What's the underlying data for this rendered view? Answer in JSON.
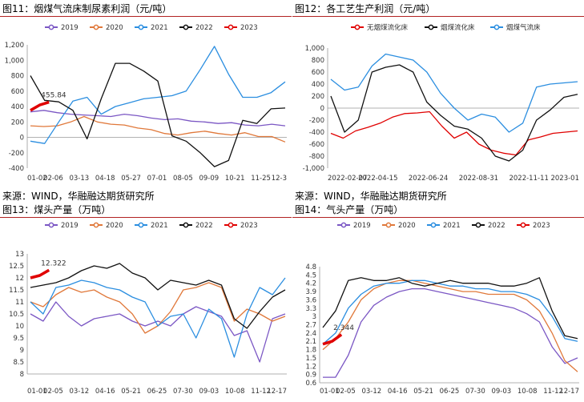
{
  "chart_data": [
    {
      "id": "c11",
      "type": "line",
      "title": "图11：烟煤气流床制尿素利润（元/吨）",
      "source": "来源：WIND，华融融达期货研究所",
      "x_ticks": [
        "01-02",
        "02-06",
        "03-13",
        "04-18",
        "05-27",
        "07-01",
        "08-05",
        "09-09",
        "10-21",
        "11-25",
        "12-3"
      ],
      "ylim": [
        -400,
        1200
      ],
      "y_ticks": [
        "-400",
        "-200",
        "0",
        "200",
        "400",
        "600",
        "800",
        "1,000",
        "1,200"
      ],
      "annotation": "455.84",
      "series": [
        {
          "name": "2019",
          "color": "#7b57c4",
          "values": [
            330,
            350,
            320,
            300,
            290,
            280,
            270,
            300,
            280,
            250,
            230,
            240,
            210,
            200,
            180,
            190,
            160,
            150,
            170,
            150
          ]
        },
        {
          "name": "2020",
          "color": "#e0783a",
          "values": [
            150,
            140,
            150,
            200,
            270,
            200,
            170,
            160,
            120,
            100,
            50,
            30,
            60,
            80,
            50,
            30,
            60,
            10,
            10,
            -60
          ]
        },
        {
          "name": "2021",
          "color": "#2b8ee0",
          "values": [
            -50,
            -80,
            200,
            470,
            520,
            300,
            400,
            450,
            500,
            520,
            540,
            600,
            880,
            1180,
            820,
            520,
            520,
            580,
            720
          ]
        },
        {
          "name": "2022",
          "color": "#111111",
          "values": [
            800,
            480,
            460,
            350,
            -20,
            500,
            960,
            960,
            860,
            730,
            20,
            -50,
            -200,
            -380,
            -300,
            220,
            180,
            370,
            380
          ]
        },
        {
          "name": "2023",
          "color": "#e00000",
          "values": [
            350,
            420,
            455.84
          ]
        }
      ]
    },
    {
      "id": "c12",
      "type": "line",
      "title": "图12：各工艺生产利润（元/吨）",
      "source": "来源：WIND，华融融达期货研究所",
      "x_ticks": [
        "2022-02-07",
        "2022-04-15",
        "2022-06-24",
        "2022-08-31",
        "2022-11-11",
        "2023-01"
      ],
      "ylim": [
        -1000,
        1000
      ],
      "y_ticks": [
        "-1,000",
        "-800",
        "-600",
        "-400",
        "-200",
        "0",
        "200",
        "400",
        "600",
        "800",
        "1,000"
      ],
      "annotation": "",
      "series": [
        {
          "name": "无烟煤流化床",
          "color": "#e00000",
          "values": [
            -420,
            -500,
            -380,
            -320,
            -250,
            -150,
            -90,
            -80,
            -60,
            -300,
            -500,
            -400,
            -600,
            -700,
            -750,
            -780,
            -530,
            -480,
            -420,
            -400,
            -380
          ]
        },
        {
          "name": "烟煤流化床",
          "color": "#111111",
          "values": [
            200,
            -400,
            -200,
            600,
            680,
            720,
            600,
            100,
            -120,
            -300,
            -350,
            -500,
            -800,
            -880,
            -700,
            -200,
            -30,
            180,
            230
          ]
        },
        {
          "name": "烟煤气流床",
          "color": "#2b8ee0",
          "values": [
            480,
            300,
            350,
            700,
            900,
            850,
            800,
            600,
            250,
            0,
            -200,
            -100,
            -150,
            -400,
            -250,
            350,
            400,
            420,
            440
          ]
        }
      ]
    },
    {
      "id": "c13",
      "type": "line",
      "title": "图13：煤头产量（万吨）",
      "source": "",
      "x_ticks": [
        "01-01",
        "02-05",
        "03-12",
        "04-16",
        "05-21",
        "06-25",
        "07-30",
        "09-03",
        "10-08",
        "11-12",
        "12-17"
      ],
      "ylim": [
        8,
        13
      ],
      "y_ticks": [
        "8",
        "8.5",
        "9",
        "9.5",
        "10",
        "10.5",
        "11",
        "11.5",
        "12",
        "12.5",
        "13"
      ],
      "annotation": "12.322",
      "series": [
        {
          "name": "2019",
          "color": "#7b57c4",
          "values": [
            10.5,
            10.2,
            11,
            10.4,
            10,
            10.3,
            10.4,
            10.5,
            10.2,
            10,
            10.2,
            10,
            10.5,
            10.8,
            10.6,
            10.4,
            9.6,
            9.8,
            8.5,
            10.3,
            10.5
          ]
        },
        {
          "name": "2020",
          "color": "#e0783a",
          "values": [
            11,
            10.8,
            11.3,
            11.6,
            11.4,
            11.5,
            11.2,
            11,
            10.5,
            9.7,
            10,
            10.6,
            11.5,
            11.6,
            11.8,
            11.6,
            10.2,
            10.7,
            10.5,
            10.2,
            10.4
          ]
        },
        {
          "name": "2021",
          "color": "#2b8ee0",
          "values": [
            11,
            10.5,
            11.6,
            11.7,
            11.9,
            11.8,
            11.6,
            11.5,
            11.2,
            11,
            10,
            10.4,
            10.5,
            9.5,
            10.7,
            10.3,
            8.7,
            10.5,
            11.6,
            11.3,
            12
          ]
        },
        {
          "name": "2022",
          "color": "#111111",
          "values": [
            11.6,
            11.7,
            11.8,
            12,
            12.3,
            12.5,
            12.4,
            12.6,
            12.2,
            12,
            11.5,
            11.9,
            11.8,
            11.7,
            11.9,
            11.7,
            10.3,
            9.9,
            10.6,
            11.2,
            11.5
          ]
        },
        {
          "name": "2023",
          "color": "#e00000",
          "values": [
            12,
            12.1,
            12.322
          ]
        }
      ]
    },
    {
      "id": "c14",
      "type": "line",
      "title": "图14：气头产量（万吨）",
      "source": "",
      "x_ticks": [
        "01-01",
        "02-05",
        "03-12",
        "04-16",
        "05-21",
        "06-25",
        "07-30",
        "09-03",
        "10-08",
        "11-12",
        "12-17"
      ],
      "ylim": [
        0.6,
        4.8
      ],
      "y_ticks": [
        "0.6",
        "0.9",
        "1.2",
        "1.5",
        "1.8",
        "2.1",
        "2.4",
        "2.7",
        "3",
        "3.3",
        "3.6",
        "3.9",
        "4.2",
        "4.5",
        "4.8"
      ],
      "annotation": "2.344",
      "series": [
        {
          "name": "2019",
          "color": "#7b57c4",
          "values": [
            0.8,
            0.8,
            1.6,
            2.8,
            3.4,
            3.7,
            3.9,
            4.0,
            4.0,
            3.9,
            3.8,
            3.7,
            3.6,
            3.5,
            3.4,
            3.3,
            3.1,
            2.8,
            1.9,
            1.3,
            1.5
          ]
        },
        {
          "name": "2020",
          "color": "#e0783a",
          "values": [
            1.8,
            2.2,
            2.8,
            3.6,
            4.0,
            4.2,
            4.3,
            4.3,
            4.2,
            4.1,
            4.0,
            3.9,
            3.9,
            3.8,
            3.8,
            3.8,
            3.6,
            3.2,
            2.4,
            1.4,
            1.0
          ]
        },
        {
          "name": "2021",
          "color": "#2b8ee0",
          "values": [
            2.0,
            2.4,
            3.3,
            3.8,
            4.1,
            4.2,
            4.2,
            4.3,
            4.3,
            4.2,
            4.1,
            4.1,
            4.0,
            4.0,
            3.9,
            3.9,
            3.8,
            3.6,
            3.0,
            2.2,
            2.1
          ]
        },
        {
          "name": "2022",
          "color": "#111111",
          "values": [
            2.6,
            3.2,
            4.3,
            4.4,
            4.3,
            4.3,
            4.4,
            4.2,
            4.1,
            4.2,
            4.3,
            4.2,
            4.2,
            4.2,
            4.1,
            4.1,
            4.2,
            4.4,
            3.2,
            2.3,
            2.2
          ]
        },
        {
          "name": "2023",
          "color": "#e00000",
          "values": [
            2.0,
            2.1,
            2.344
          ]
        }
      ]
    }
  ]
}
